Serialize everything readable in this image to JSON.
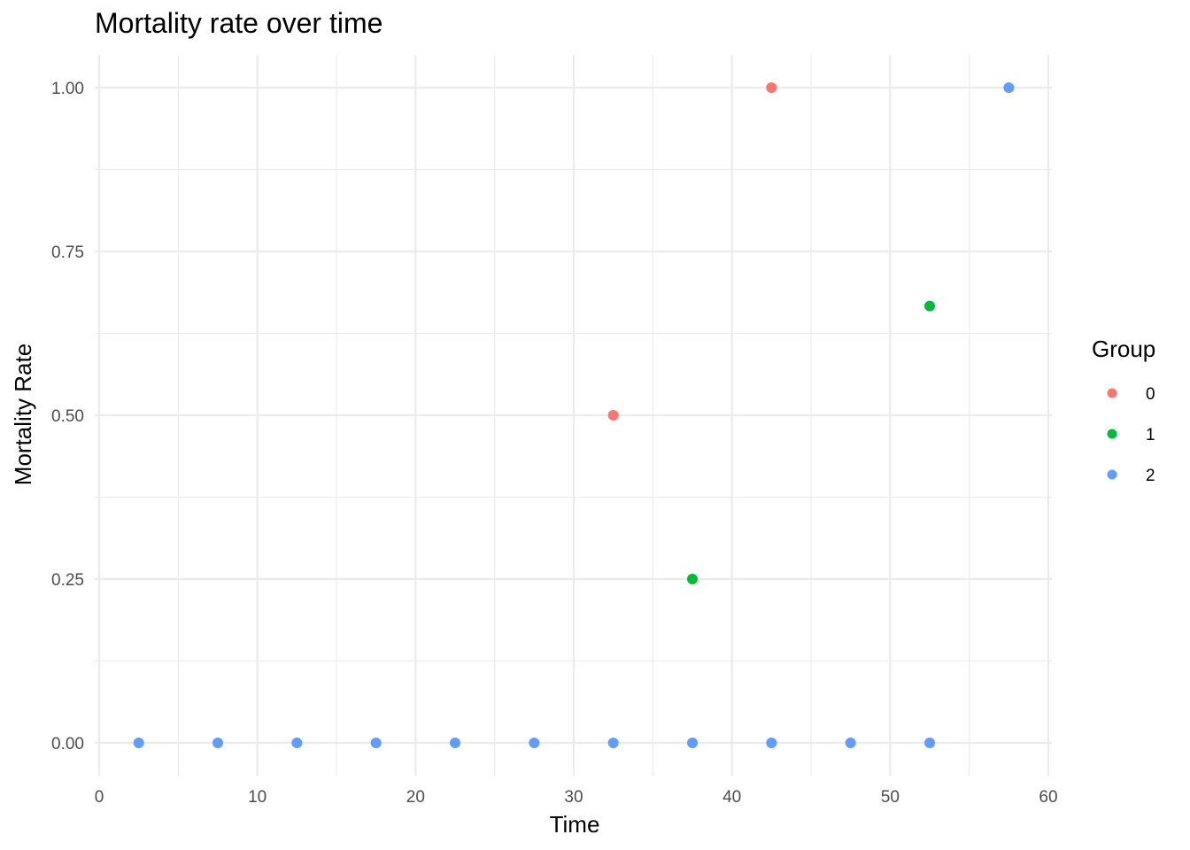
{
  "chart_data": {
    "type": "scatter",
    "title": "Mortality rate over time",
    "xlabel": "Time",
    "ylabel": "Mortality Rate",
    "xlim": [
      0,
      60
    ],
    "ylim": [
      0,
      1
    ],
    "x_ticks": [
      "0",
      "10",
      "20",
      "30",
      "40",
      "50",
      "60"
    ],
    "y_ticks": [
      "0.00",
      "0.25",
      "0.50",
      "0.75",
      "1.00"
    ],
    "grid": true,
    "legend": {
      "title": "Group",
      "position": "right"
    },
    "series": [
      {
        "name": "0",
        "color": "#F8766D",
        "points": [
          {
            "x": 32.5,
            "y": 0.5
          },
          {
            "x": 42.5,
            "y": 1.0
          }
        ]
      },
      {
        "name": "1",
        "color": "#00BA38",
        "points": [
          {
            "x": 37.5,
            "y": 0.25
          },
          {
            "x": 52.5,
            "y": 0.6667
          }
        ]
      },
      {
        "name": "2",
        "color": "#619CFF",
        "points": [
          {
            "x": 2.5,
            "y": 0
          },
          {
            "x": 7.5,
            "y": 0
          },
          {
            "x": 12.5,
            "y": 0
          },
          {
            "x": 17.5,
            "y": 0
          },
          {
            "x": 22.5,
            "y": 0
          },
          {
            "x": 27.5,
            "y": 0
          },
          {
            "x": 32.5,
            "y": 0
          },
          {
            "x": 37.5,
            "y": 0
          },
          {
            "x": 42.5,
            "y": 0
          },
          {
            "x": 47.5,
            "y": 0
          },
          {
            "x": 52.5,
            "y": 0
          },
          {
            "x": 57.5,
            "y": 1.0
          }
        ]
      }
    ]
  }
}
